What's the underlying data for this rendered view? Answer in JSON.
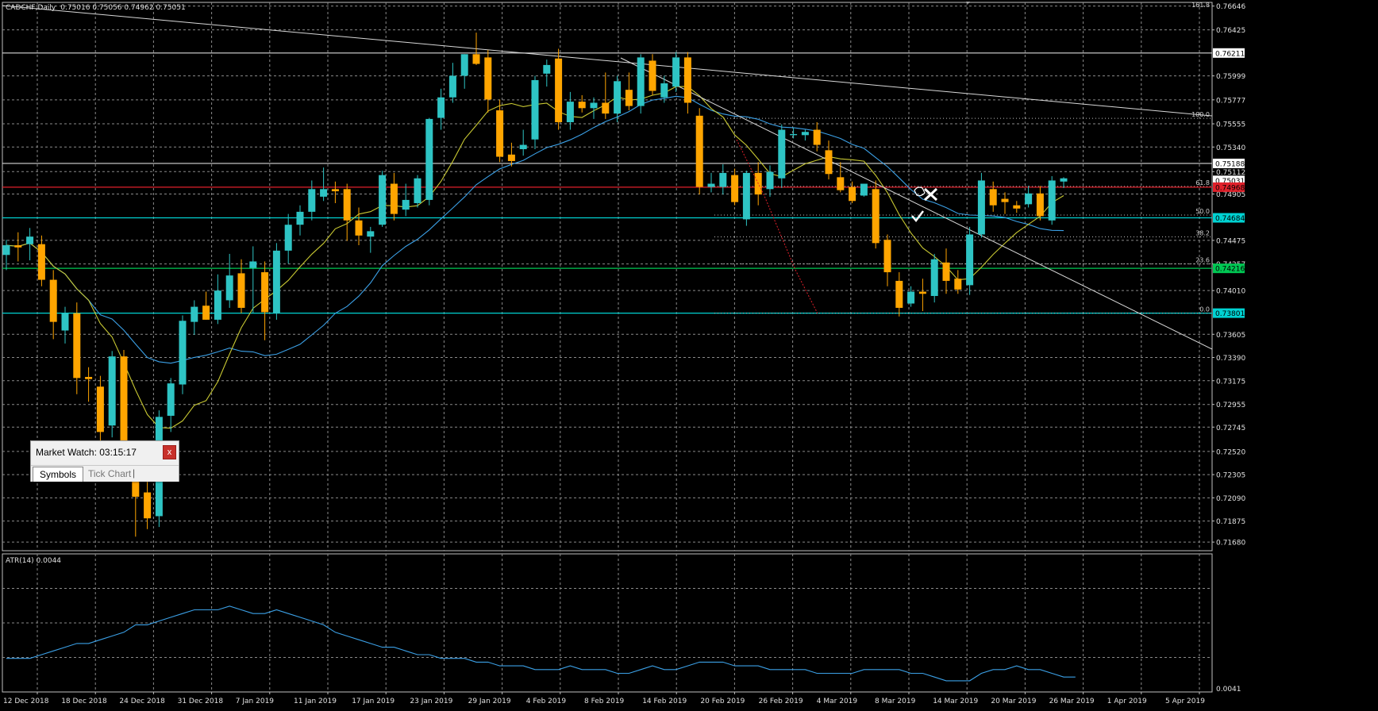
{
  "window": {
    "symbol_title": "CADCHF,Daily",
    "ohlc_text": "0.75016 0.75056 0.74962 0.75051"
  },
  "indicator": {
    "label": "ATR(14) 0.0044",
    "axis_labels": [
      "0.0041"
    ]
  },
  "market_watch": {
    "title": "Market Watch: 03:15:17",
    "close_label": "x",
    "tabs": [
      {
        "label": "Symbols",
        "active": true
      },
      {
        "label": "Tick Chart",
        "active": false
      }
    ]
  },
  "colors": {
    "background": "#000000",
    "bull_candle": "#2ec4c4",
    "bear_candle": "#ffa500",
    "ma_fast": "#c8c832",
    "ma_slow": "#3ba0e6",
    "grid": "#8a8a8a",
    "support_line": "#00d2d2",
    "green_line": "#00c853",
    "red_line": "#e0202a",
    "white_line": "#d8d8d8"
  },
  "icons": {
    "close": "close-icon",
    "check_mark": "check-icon",
    "cross_mark": "x-mark-icon",
    "hand": "hand-cursor-icon"
  },
  "chart_data": {
    "type": "candlestick",
    "symbol": "CADCHF",
    "timeframe": "Daily",
    "price_axis": {
      "range": [
        0.716,
        0.7668
      ],
      "tick_labels": [
        "0.76646",
        "0.76425",
        "0.75999",
        "0.75777",
        "0.75555",
        "0.75340",
        "0.75112",
        "0.74905",
        "0.74475",
        "0.74257",
        "0.74010",
        "0.73605",
        "0.73390",
        "0.73175",
        "0.72955",
        "0.72745",
        "0.72520",
        "0.72305",
        "0.72090",
        "0.71875",
        "0.71680"
      ]
    },
    "price_tags": [
      {
        "text": "0.76211",
        "price": 0.76211,
        "style": "white"
      },
      {
        "text": "0.75188",
        "price": 0.75188,
        "style": "white"
      },
      {
        "text": "0.75031",
        "price": 0.75031,
        "style": "white"
      },
      {
        "text": "0.74968",
        "price": 0.74968,
        "style": "red"
      },
      {
        "text": "0.74684",
        "price": 0.74684,
        "style": "cyan"
      },
      {
        "text": "0.74216",
        "price": 0.74216,
        "style": "green"
      },
      {
        "text": "0.73801",
        "price": 0.73801,
        "style": "cyan"
      }
    ],
    "horizontal_lines": [
      {
        "price": 0.76211,
        "color": "#d8d8d8"
      },
      {
        "price": 0.75188,
        "color": "#d8d8d8"
      },
      {
        "price": 0.74968,
        "color": "#e0202a"
      },
      {
        "price": 0.74684,
        "color": "#00d2d2"
      },
      {
        "price": 0.74216,
        "color": "#00c853"
      },
      {
        "price": 0.73801,
        "color": "#00d2d2"
      }
    ],
    "fibo_levels": [
      {
        "label": "100.0",
        "price": 0.75606
      },
      {
        "label": "61.8",
        "price": 0.74975
      },
      {
        "label": "50.0",
        "price": 0.7471
      },
      {
        "label": "38.2",
        "price": 0.74508
      },
      {
        "label": "23.6",
        "price": 0.74258
      },
      {
        "label": "0.0",
        "price": 0.73801
      }
    ],
    "fibo_top_label": "161.8",
    "date_labels": [
      "12 Dec 2018",
      "18 Dec 2018",
      "24 Dec 2018",
      "31 Dec 2018",
      "7 Jan 2019",
      "11 Jan 2019",
      "17 Jan 2019",
      "23 Jan 2019",
      "29 Jan 2019",
      "4 Feb 2019",
      "8 Feb 2019",
      "14 Feb 2019",
      "20 Feb 2019",
      "26 Feb 2019",
      "4 Mar 2019",
      "8 Mar 2019",
      "14 Mar 2019",
      "20 Mar 2019",
      "26 Mar 2019",
      "1 Apr 2019",
      "5 Apr 2019"
    ],
    "candles": [
      {
        "o": 0.7434,
        "h": 0.7448,
        "l": 0.742,
        "c": 0.7443
      },
      {
        "o": 0.7443,
        "h": 0.7455,
        "l": 0.7428,
        "c": 0.7441
      },
      {
        "o": 0.7444,
        "h": 0.7459,
        "l": 0.7429,
        "c": 0.7451
      },
      {
        "o": 0.7444,
        "h": 0.7452,
        "l": 0.7405,
        "c": 0.7411
      },
      {
        "o": 0.7411,
        "h": 0.742,
        "l": 0.7356,
        "c": 0.7372
      },
      {
        "o": 0.7364,
        "h": 0.7386,
        "l": 0.7352,
        "c": 0.738
      },
      {
        "o": 0.738,
        "h": 0.739,
        "l": 0.7305,
        "c": 0.732
      },
      {
        "o": 0.7321,
        "h": 0.733,
        "l": 0.7298,
        "c": 0.7319
      },
      {
        "o": 0.7312,
        "h": 0.7322,
        "l": 0.7255,
        "c": 0.727
      },
      {
        "o": 0.7276,
        "h": 0.7345,
        "l": 0.7265,
        "c": 0.734
      },
      {
        "o": 0.734,
        "h": 0.7346,
        "l": 0.7247,
        "c": 0.726
      },
      {
        "o": 0.724,
        "h": 0.725,
        "l": 0.7173,
        "c": 0.721
      },
      {
        "o": 0.7214,
        "h": 0.7231,
        "l": 0.718,
        "c": 0.719
      },
      {
        "o": 0.7192,
        "h": 0.729,
        "l": 0.7182,
        "c": 0.7284
      },
      {
        "o": 0.7285,
        "h": 0.732,
        "l": 0.727,
        "c": 0.7315
      },
      {
        "o": 0.7314,
        "h": 0.7378,
        "l": 0.7305,
        "c": 0.7373
      },
      {
        "o": 0.7372,
        "h": 0.7392,
        "l": 0.736,
        "c": 0.7386
      },
      {
        "o": 0.7387,
        "h": 0.74,
        "l": 0.7374,
        "c": 0.7374
      },
      {
        "o": 0.7374,
        "h": 0.7416,
        "l": 0.737,
        "c": 0.7401
      },
      {
        "o": 0.7392,
        "h": 0.7435,
        "l": 0.7385,
        "c": 0.7415
      },
      {
        "o": 0.7417,
        "h": 0.743,
        "l": 0.738,
        "c": 0.7385
      },
      {
        "o": 0.7422,
        "h": 0.7442,
        "l": 0.738,
        "c": 0.7428
      },
      {
        "o": 0.7418,
        "h": 0.7428,
        "l": 0.7355,
        "c": 0.7381
      },
      {
        "o": 0.738,
        "h": 0.7445,
        "l": 0.7374,
        "c": 0.7438
      },
      {
        "o": 0.7438,
        "h": 0.7472,
        "l": 0.7426,
        "c": 0.7462
      },
      {
        "o": 0.7462,
        "h": 0.748,
        "l": 0.7452,
        "c": 0.7474
      },
      {
        "o": 0.7474,
        "h": 0.7503,
        "l": 0.7466,
        "c": 0.7495
      },
      {
        "o": 0.7488,
        "h": 0.7515,
        "l": 0.7484,
        "c": 0.7495
      },
      {
        "o": 0.7495,
        "h": 0.7502,
        "l": 0.7482,
        "c": 0.7493
      },
      {
        "o": 0.7495,
        "h": 0.75,
        "l": 0.7447,
        "c": 0.7466
      },
      {
        "o": 0.7466,
        "h": 0.7478,
        "l": 0.7443,
        "c": 0.7452
      },
      {
        "o": 0.7451,
        "h": 0.746,
        "l": 0.7436,
        "c": 0.7456
      },
      {
        "o": 0.7462,
        "h": 0.7512,
        "l": 0.746,
        "c": 0.7508
      },
      {
        "o": 0.75,
        "h": 0.751,
        "l": 0.7466,
        "c": 0.7472
      },
      {
        "o": 0.7476,
        "h": 0.75,
        "l": 0.747,
        "c": 0.7485
      },
      {
        "o": 0.7482,
        "h": 0.7508,
        "l": 0.7478,
        "c": 0.7505
      },
      {
        "o": 0.7485,
        "h": 0.7561,
        "l": 0.748,
        "c": 0.756
      },
      {
        "o": 0.7561,
        "h": 0.7588,
        "l": 0.755,
        "c": 0.758
      },
      {
        "o": 0.758,
        "h": 0.7612,
        "l": 0.7575,
        "c": 0.76
      },
      {
        "o": 0.76,
        "h": 0.762,
        "l": 0.7588,
        "c": 0.762
      },
      {
        "o": 0.762,
        "h": 0.764,
        "l": 0.761,
        "c": 0.7611
      },
      {
        "o": 0.7617,
        "h": 0.7624,
        "l": 0.7566,
        "c": 0.7578
      },
      {
        "o": 0.7568,
        "h": 0.7578,
        "l": 0.752,
        "c": 0.7525
      },
      {
        "o": 0.7527,
        "h": 0.7538,
        "l": 0.7516,
        "c": 0.7521
      },
      {
        "o": 0.7532,
        "h": 0.755,
        "l": 0.7526,
        "c": 0.7536
      },
      {
        "o": 0.7541,
        "h": 0.76,
        "l": 0.7532,
        "c": 0.7596
      },
      {
        "o": 0.7602,
        "h": 0.7615,
        "l": 0.759,
        "c": 0.761
      },
      {
        "o": 0.7616,
        "h": 0.7625,
        "l": 0.755,
        "c": 0.7557
      },
      {
        "o": 0.7557,
        "h": 0.7585,
        "l": 0.755,
        "c": 0.7576
      },
      {
        "o": 0.7576,
        "h": 0.7582,
        "l": 0.7566,
        "c": 0.757
      },
      {
        "o": 0.757,
        "h": 0.758,
        "l": 0.756,
        "c": 0.7575
      },
      {
        "o": 0.7575,
        "h": 0.7603,
        "l": 0.756,
        "c": 0.7565
      },
      {
        "o": 0.7565,
        "h": 0.76,
        "l": 0.7557,
        "c": 0.7595
      },
      {
        "o": 0.7587,
        "h": 0.7603,
        "l": 0.7568,
        "c": 0.7572
      },
      {
        "o": 0.7572,
        "h": 0.762,
        "l": 0.7565,
        "c": 0.7617
      },
      {
        "o": 0.7614,
        "h": 0.762,
        "l": 0.7582,
        "c": 0.7586
      },
      {
        "o": 0.758,
        "h": 0.76,
        "l": 0.7575,
        "c": 0.7593
      },
      {
        "o": 0.759,
        "h": 0.7622,
        "l": 0.7585,
        "c": 0.7617
      },
      {
        "o": 0.7617,
        "h": 0.7622,
        "l": 0.7565,
        "c": 0.7575
      },
      {
        "o": 0.7563,
        "h": 0.757,
        "l": 0.749,
        "c": 0.7497
      },
      {
        "o": 0.7497,
        "h": 0.751,
        "l": 0.7492,
        "c": 0.75
      },
      {
        "o": 0.7497,
        "h": 0.7518,
        "l": 0.749,
        "c": 0.751
      },
      {
        "o": 0.7508,
        "h": 0.7514,
        "l": 0.748,
        "c": 0.7483
      },
      {
        "o": 0.7467,
        "h": 0.7512,
        "l": 0.7461,
        "c": 0.751
      },
      {
        "o": 0.751,
        "h": 0.752,
        "l": 0.748,
        "c": 0.749
      },
      {
        "o": 0.7495,
        "h": 0.7517,
        "l": 0.7488,
        "c": 0.7511
      },
      {
        "o": 0.7505,
        "h": 0.7555,
        "l": 0.7496,
        "c": 0.755
      },
      {
        "o": 0.7545,
        "h": 0.7552,
        "l": 0.7542,
        "c": 0.7546
      },
      {
        "o": 0.7545,
        "h": 0.755,
        "l": 0.754,
        "c": 0.7548
      },
      {
        "o": 0.755,
        "h": 0.7557,
        "l": 0.753,
        "c": 0.7536
      },
      {
        "o": 0.7531,
        "h": 0.754,
        "l": 0.7504,
        "c": 0.7509
      },
      {
        "o": 0.7506,
        "h": 0.752,
        "l": 0.7492,
        "c": 0.7494
      },
      {
        "o": 0.7497,
        "h": 0.7502,
        "l": 0.7482,
        "c": 0.7484
      },
      {
        "o": 0.7489,
        "h": 0.75,
        "l": 0.7488,
        "c": 0.75
      },
      {
        "o": 0.7495,
        "h": 0.7503,
        "l": 0.744,
        "c": 0.7445
      },
      {
        "o": 0.7448,
        "h": 0.7453,
        "l": 0.7405,
        "c": 0.7418
      },
      {
        "o": 0.741,
        "h": 0.7418,
        "l": 0.7377,
        "c": 0.7385
      },
      {
        "o": 0.7389,
        "h": 0.7405,
        "l": 0.7386,
        "c": 0.74
      },
      {
        "o": 0.74,
        "h": 0.7412,
        "l": 0.7382,
        "c": 0.7398
      },
      {
        "o": 0.7396,
        "h": 0.7435,
        "l": 0.739,
        "c": 0.743
      },
      {
        "o": 0.7427,
        "h": 0.744,
        "l": 0.7398,
        "c": 0.741
      },
      {
        "o": 0.7412,
        "h": 0.742,
        "l": 0.7398,
        "c": 0.7402
      },
      {
        "o": 0.7406,
        "h": 0.746,
        "l": 0.7397,
        "c": 0.7453
      },
      {
        "o": 0.7453,
        "h": 0.751,
        "l": 0.745,
        "c": 0.7503
      },
      {
        "o": 0.7495,
        "h": 0.7502,
        "l": 0.7474,
        "c": 0.748
      },
      {
        "o": 0.7486,
        "h": 0.7492,
        "l": 0.7472,
        "c": 0.7483
      },
      {
        "o": 0.748,
        "h": 0.7484,
        "l": 0.7473,
        "c": 0.7477
      },
      {
        "o": 0.7481,
        "h": 0.7498,
        "l": 0.7478,
        "c": 0.7491
      },
      {
        "o": 0.7491,
        "h": 0.7498,
        "l": 0.7466,
        "c": 0.747
      },
      {
        "o": 0.7466,
        "h": 0.7507,
        "l": 0.7462,
        "c": 0.7503
      },
      {
        "o": 0.7502,
        "h": 0.7506,
        "l": 0.7496,
        "c": 0.7505
      }
    ],
    "atr_values": [
      0.0049,
      0.0049,
      0.0049,
      0.005,
      0.0051,
      0.0052,
      0.0053,
      0.0053,
      0.0054,
      0.0055,
      0.0056,
      0.0058,
      0.0058,
      0.0059,
      0.006,
      0.0061,
      0.0062,
      0.0062,
      0.0062,
      0.0063,
      0.0062,
      0.0061,
      0.0061,
      0.0062,
      0.0061,
      0.006,
      0.0059,
      0.0058,
      0.0056,
      0.0055,
      0.0054,
      0.0053,
      0.0052,
      0.0052,
      0.0051,
      0.005,
      0.005,
      0.0049,
      0.0049,
      0.0049,
      0.0048,
      0.0048,
      0.0047,
      0.0047,
      0.0047,
      0.0046,
      0.0046,
      0.0046,
      0.0047,
      0.0046,
      0.0046,
      0.0046,
      0.0045,
      0.0045,
      0.0046,
      0.0047,
      0.0046,
      0.0046,
      0.0047,
      0.0048,
      0.0048,
      0.0048,
      0.0047,
      0.0047,
      0.0047,
      0.0046,
      0.0046,
      0.0046,
      0.0046,
      0.0045,
      0.0045,
      0.0045,
      0.0045,
      0.0046,
      0.0046,
      0.0046,
      0.0046,
      0.0045,
      0.0045,
      0.0044,
      0.0043,
      0.0043,
      0.0043,
      0.0045,
      0.0046,
      0.0046,
      0.0047,
      0.0046,
      0.0046,
      0.0045,
      0.0044,
      0.0044
    ],
    "atr_range": [
      0.004,
      0.0077
    ]
  }
}
